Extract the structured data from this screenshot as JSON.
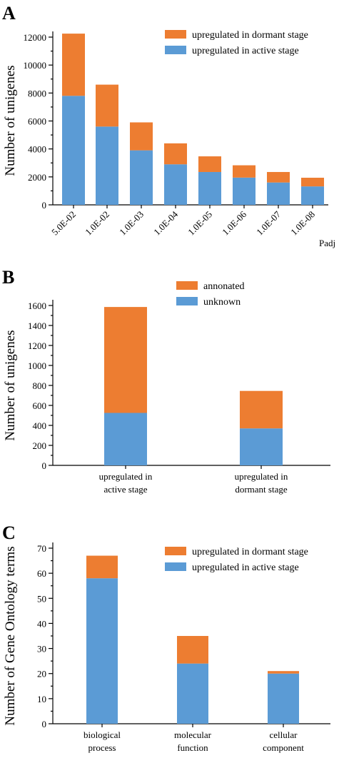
{
  "colors": {
    "active": "#5b9bd5",
    "dormant": "#ed7d31",
    "annotated": "#ed7d31",
    "unknown": "#5b9bd5"
  },
  "chart_data": [
    {
      "panel": "A",
      "type": "bar",
      "stacked": true,
      "title": "",
      "xlabel": "Padj",
      "ylabel": "Number of unigenes",
      "ylim": [
        0,
        12000
      ],
      "yticks": [
        0,
        2000,
        4000,
        6000,
        8000,
        10000,
        12000
      ],
      "grid": false,
      "legend_position": "top-right",
      "categories": [
        "5.0E-02",
        "1.0E-02",
        "1.0E-03",
        "1.0E-04",
        "1.0E-05",
        "1.0E-06",
        "1.0E-07",
        "1.0E-08"
      ],
      "series": [
        {
          "name": "upregulated in active stage",
          "color": "#5b9bd5",
          "values": [
            7800,
            5600,
            3900,
            2900,
            2350,
            1950,
            1600,
            1320
          ]
        },
        {
          "name": "upregulated in dormant stage",
          "color": "#ed7d31",
          "values": [
            4450,
            3000,
            2000,
            1500,
            1120,
            880,
            750,
            620
          ]
        }
      ],
      "legend_order": [
        "upregulated in dormant stage",
        "upregulated in active stage"
      ]
    },
    {
      "panel": "B",
      "type": "bar",
      "stacked": true,
      "title": "",
      "xlabel": "",
      "ylabel": "Number of unigenes",
      "ylim": [
        0,
        1600
      ],
      "yticks": [
        0,
        200,
        400,
        600,
        800,
        1000,
        1200,
        1400,
        1600
      ],
      "grid": false,
      "legend_position": "top-right",
      "categories": [
        {
          "line1": "upregulated in",
          "line2": "active stage"
        },
        {
          "line1": "upregulated in",
          "line2": "dormant stage"
        }
      ],
      "series": [
        {
          "name": "unknown",
          "color": "#5b9bd5",
          "values": [
            525,
            370
          ]
        },
        {
          "name": "annonated",
          "color": "#ed7d31",
          "values": [
            1060,
            375
          ]
        }
      ],
      "legend_order": [
        "annonated",
        "unknown"
      ]
    },
    {
      "panel": "C",
      "type": "bar",
      "stacked": true,
      "title": "",
      "xlabel": "",
      "ylabel": "Number of Gene Ontology terms",
      "ylim": [
        0,
        70
      ],
      "yticks": [
        0,
        10,
        20,
        30,
        40,
        50,
        60,
        70
      ],
      "grid": false,
      "legend_position": "top-right",
      "categories": [
        {
          "line1": "biological",
          "line2": "process"
        },
        {
          "line1": "molecular",
          "line2": "function"
        },
        {
          "line1": "cellular",
          "line2": "component"
        }
      ],
      "series": [
        {
          "name": "upregulated in active stage",
          "color": "#5b9bd5",
          "values": [
            58,
            24,
            20
          ]
        },
        {
          "name": "upregulated in dormant stage",
          "color": "#ed7d31",
          "values": [
            9,
            11,
            1
          ]
        }
      ],
      "legend_order": [
        "upregulated in dormant stage",
        "upregulated in active stage"
      ]
    }
  ]
}
